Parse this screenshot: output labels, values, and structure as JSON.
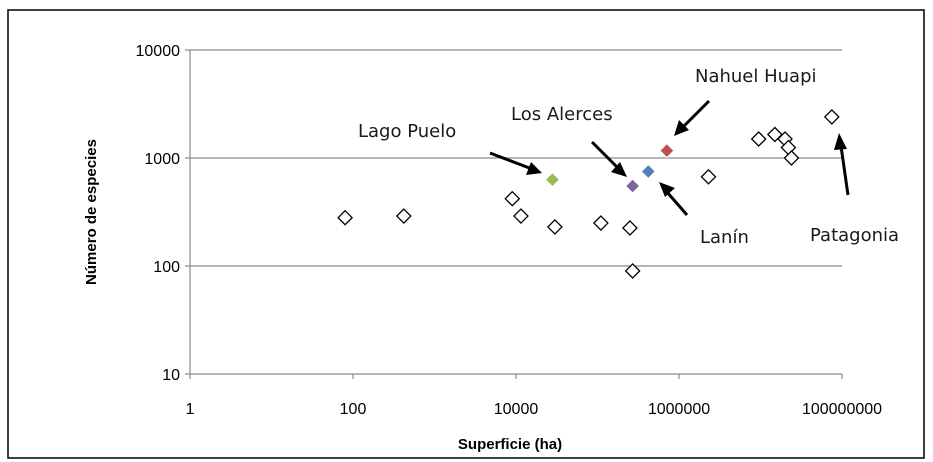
{
  "chart_data": {
    "type": "scatter",
    "xlabel": "Superficie (ha)",
    "ylabel": "Número de especies",
    "x_scale": "log",
    "y_scale": "log",
    "xlim": [
      1,
      100000000
    ],
    "ylim": [
      10,
      10000
    ],
    "x_ticks": [
      "1",
      "100",
      "10000",
      "1000000",
      "100000000"
    ],
    "y_ticks": [
      "10",
      "100",
      "1000",
      "10000"
    ],
    "grid": "horizontal",
    "points": [
      {
        "x": 80,
        "y": 280
      },
      {
        "x": 420,
        "y": 290
      },
      {
        "x": 9000,
        "y": 420
      },
      {
        "x": 11500,
        "y": 290
      },
      {
        "x": 30000,
        "y": 230
      },
      {
        "x": 110000,
        "y": 250
      },
      {
        "x": 250000,
        "y": 225
      },
      {
        "x": 270000,
        "y": 90
      },
      {
        "x": 2300000,
        "y": 670
      },
      {
        "x": 9500000,
        "y": 1500
      },
      {
        "x": 15000000,
        "y": 1650
      },
      {
        "x": 20000000,
        "y": 1500
      },
      {
        "x": 22000000,
        "y": 1250
      },
      {
        "x": 24000000,
        "y": 1000
      },
      {
        "x": 75000000,
        "y": 2400
      },
      {
        "x": 28000,
        "y": 630,
        "highlight": "Lago Puelo"
      },
      {
        "x": 270000,
        "y": 550,
        "highlight": "Los Alerces"
      },
      {
        "x": 420000,
        "y": 750,
        "highlight": "Lanín"
      },
      {
        "x": 710000,
        "y": 1170,
        "highlight": "Nahuel Huapi"
      }
    ],
    "highlight_colors": {
      "Lago Puelo": "#9bbb59",
      "Los Alerces": "#8064a2",
      "Lanín": "#4f81bd",
      "Nahuel Huapi": "#c0504d"
    },
    "annotations": [
      "Lago Puelo",
      "Los Alerces",
      "Nahuel Huapi",
      "Lanín",
      "Patagonia"
    ]
  }
}
